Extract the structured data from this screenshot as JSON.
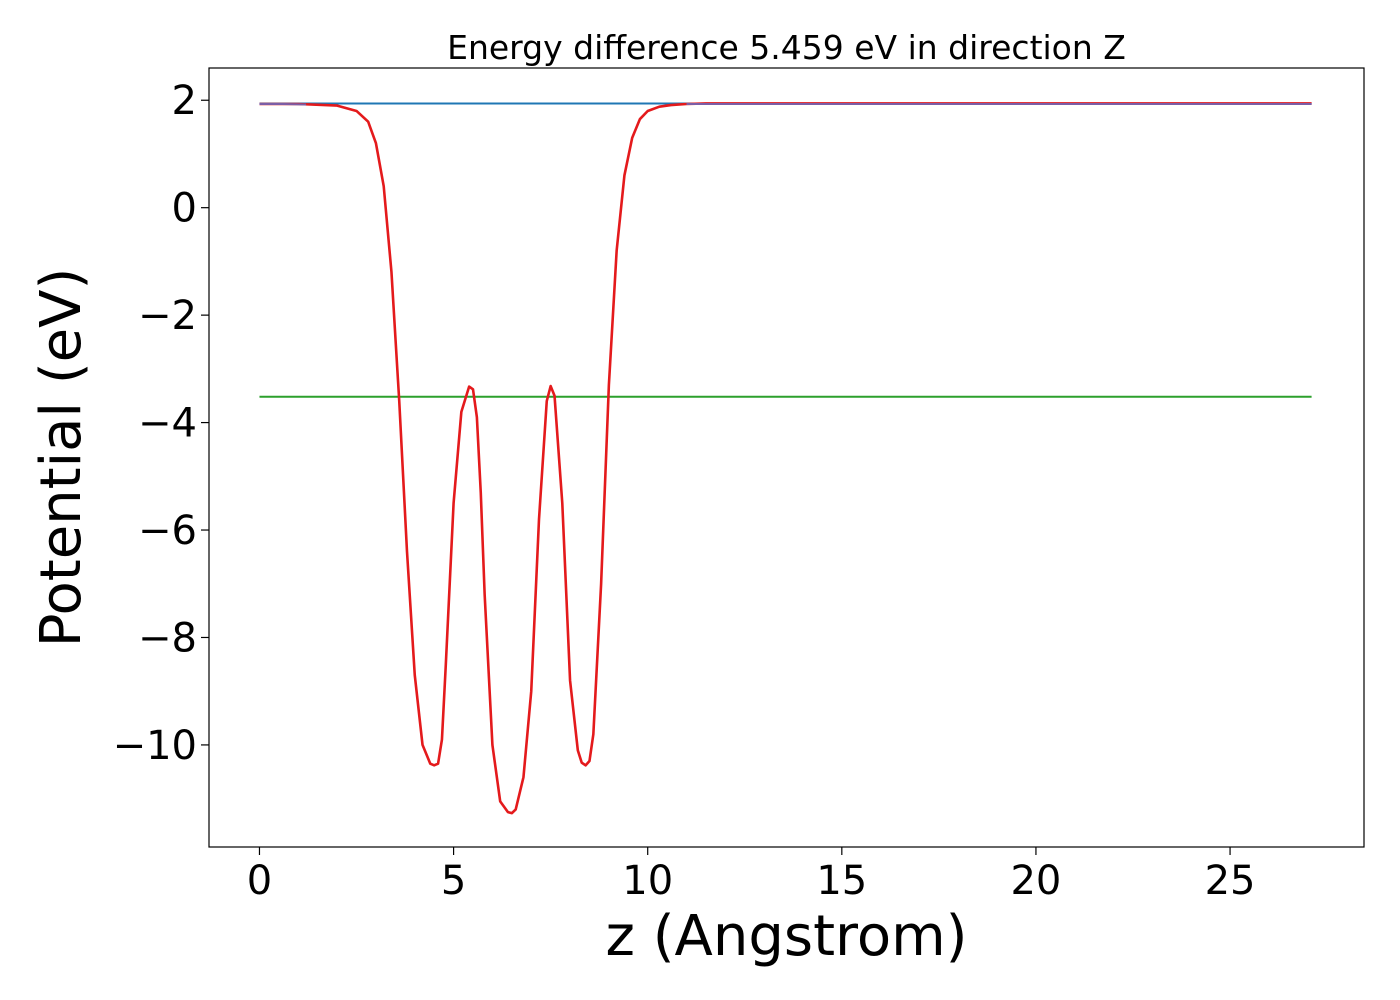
{
  "chart_data": {
    "type": "line",
    "title": "Energy difference 5.459 eV in direction Z",
    "xlabel": "z (Angstrom)",
    "ylabel": "Potential (eV)",
    "xlim": [
      -1.3,
      28.45
    ],
    "ylim": [
      -11.9,
      2.6
    ],
    "xticks": [
      0,
      5,
      10,
      15,
      20,
      25
    ],
    "xtick_labels": [
      "0",
      "5",
      "10",
      "15",
      "20",
      "25"
    ],
    "yticks": [
      2,
      0,
      -2,
      -4,
      -6,
      -8,
      -10
    ],
    "ytick_labels": [
      "2",
      "0",
      "−2",
      "−4",
      "−6",
      "−8",
      "−10"
    ],
    "grid": false,
    "legend": "none",
    "colors": {
      "vacuum_level": "#1f77b4",
      "fermi_level": "#2ca02c",
      "potential": "#e41a1c",
      "average": "#7b5ea7"
    },
    "series": [
      {
        "key": "vacuum_level",
        "x": [
          0.0,
          27.1
        ],
        "y": [
          1.94,
          1.94
        ]
      },
      {
        "key": "fermi_level",
        "x": [
          0.0,
          27.1
        ],
        "y": [
          -3.52,
          -3.52
        ]
      },
      {
        "key": "potential",
        "x": [
          0.0,
          1.0,
          2.0,
          2.5,
          2.8,
          3.0,
          3.2,
          3.4,
          3.6,
          3.8,
          4.0,
          4.2,
          4.4,
          4.5,
          4.6,
          4.7,
          4.8,
          5.0,
          5.2,
          5.4,
          5.5,
          5.6,
          5.7,
          5.8,
          6.0,
          6.2,
          6.4,
          6.5,
          6.6,
          6.8,
          7.0,
          7.2,
          7.4,
          7.5,
          7.6,
          7.8,
          8.0,
          8.2,
          8.3,
          8.4,
          8.5,
          8.6,
          8.8,
          9.0,
          9.2,
          9.4,
          9.6,
          9.8,
          10.0,
          10.3,
          10.6,
          11.0,
          11.5,
          12.0,
          13.0,
          15.0,
          20.0,
          25.0,
          27.1
        ],
        "y": [
          1.93,
          1.93,
          1.9,
          1.8,
          1.6,
          1.2,
          0.4,
          -1.2,
          -3.6,
          -6.4,
          -8.7,
          -10.0,
          -10.35,
          -10.38,
          -10.35,
          -9.9,
          -8.5,
          -5.5,
          -3.8,
          -3.33,
          -3.38,
          -3.9,
          -5.3,
          -7.2,
          -10.0,
          -11.05,
          -11.25,
          -11.27,
          -11.2,
          -10.6,
          -9.0,
          -5.8,
          -3.6,
          -3.32,
          -3.5,
          -5.5,
          -8.8,
          -10.1,
          -10.33,
          -10.38,
          -10.3,
          -9.8,
          -7.0,
          -3.3,
          -0.8,
          0.6,
          1.3,
          1.65,
          1.8,
          1.88,
          1.91,
          1.93,
          1.94,
          1.94,
          1.94,
          1.94,
          1.94,
          1.94,
          1.94
        ]
      },
      {
        "key": "average",
        "x": [
          0.0,
          0.6,
          1.2
        ],
        "y": [
          1.93,
          1.93,
          1.92
        ]
      },
      {
        "key": "average",
        "x": [
          11.0,
          27.1
        ],
        "y": [
          1.93,
          1.93
        ]
      }
    ]
  }
}
